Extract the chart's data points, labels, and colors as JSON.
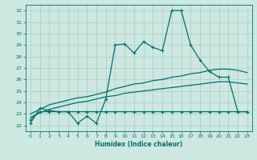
{
  "title": "",
  "xlabel": "Humidex (Indice chaleur)",
  "bg_color": "#cce8e0",
  "grid_color": "#aaccc4",
  "line_color": "#007070",
  "xlim": [
    -0.5,
    23.5
  ],
  "ylim": [
    21.5,
    32.5
  ],
  "x_ticks": [
    0,
    1,
    2,
    3,
    4,
    5,
    6,
    7,
    8,
    9,
    10,
    11,
    12,
    13,
    14,
    15,
    16,
    17,
    18,
    19,
    20,
    21,
    22,
    23
  ],
  "y_ticks": [
    22,
    23,
    24,
    25,
    26,
    27,
    28,
    29,
    30,
    31,
    32
  ],
  "line_top": [
    22.2,
    23.5,
    23.3,
    23.2,
    23.2,
    22.2,
    22.8,
    22.2,
    24.3,
    29.0,
    29.1,
    28.3,
    29.3,
    28.8,
    28.5,
    32.0,
    32.0,
    29.0,
    27.7,
    26.7,
    26.2,
    26.2,
    23.2,
    23.2
  ],
  "line_upper_mid": [
    23.0,
    23.4,
    23.8,
    24.0,
    24.2,
    24.4,
    24.5,
    24.7,
    24.9,
    25.2,
    25.4,
    25.6,
    25.7,
    25.9,
    26.0,
    26.2,
    26.3,
    26.5,
    26.6,
    26.8,
    26.9,
    26.9,
    26.8,
    26.6
  ],
  "line_lower_mid": [
    22.7,
    23.1,
    23.4,
    23.6,
    23.8,
    24.0,
    24.1,
    24.3,
    24.5,
    24.6,
    24.8,
    24.9,
    25.0,
    25.1,
    25.2,
    25.3,
    25.4,
    25.5,
    25.6,
    25.7,
    25.8,
    25.8,
    25.7,
    25.6
  ],
  "line_bottom": [
    22.5,
    23.2,
    23.2,
    23.2,
    23.2,
    23.2,
    23.2,
    23.2,
    23.2,
    23.2,
    23.2,
    23.2,
    23.2,
    23.2,
    23.2,
    23.2,
    23.2,
    23.2,
    23.2,
    23.2,
    23.2,
    23.2,
    23.2,
    23.2
  ]
}
